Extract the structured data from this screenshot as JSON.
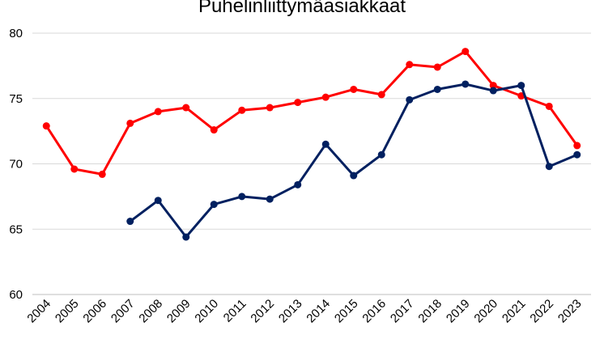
{
  "chart_data": {
    "type": "line",
    "title": "Puhelinliittymäasiakkaat",
    "xlabel": "",
    "ylabel": "",
    "ylim": [
      60,
      80
    ],
    "yticks": [
      "60",
      "65",
      "70",
      "75",
      "80"
    ],
    "grid": true,
    "legend": "none",
    "categories": [
      "2004",
      "2005",
      "2006",
      "2007",
      "2008",
      "2009",
      "2010",
      "2011",
      "2012",
      "2013",
      "2014",
      "2015",
      "2016",
      "2017",
      "2018",
      "2019",
      "2020",
      "2021",
      "2022",
      "2023"
    ],
    "series": [
      {
        "color": "#ff0000",
        "values": [
          72.9,
          69.6,
          69.2,
          73.1,
          74.0,
          74.3,
          72.6,
          74.1,
          74.3,
          74.7,
          75.1,
          75.7,
          75.3,
          77.6,
          77.4,
          78.6,
          76.0,
          75.2,
          74.4,
          71.4
        ]
      },
      {
        "color": "#002060",
        "values": [
          null,
          null,
          null,
          65.6,
          67.2,
          64.4,
          66.9,
          67.5,
          67.3,
          68.4,
          71.5,
          69.1,
          70.7,
          74.9,
          75.7,
          76.1,
          75.6,
          76.0,
          69.8,
          70.7
        ]
      }
    ]
  }
}
